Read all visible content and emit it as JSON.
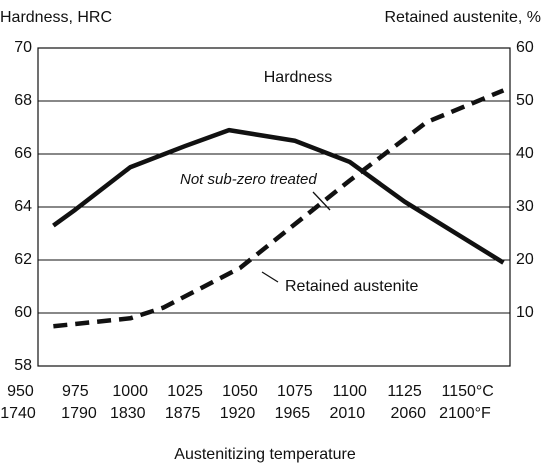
{
  "chart_data": {
    "type": "line",
    "y_label": "Hardness, HRC",
    "y2_label": "Retained austenite, %",
    "x_label": "Austenitizing temperature",
    "xlim": [
      958,
      1173
    ],
    "xticks": [
      950,
      975,
      1000,
      1025,
      1050,
      1075,
      1100,
      1125,
      {
        "value": 1150,
        "label": "1150°C"
      }
    ],
    "x2ticks": [
      1740,
      1790,
      1830,
      1875,
      1920,
      1965,
      2010,
      2060,
      {
        "value": 2100,
        "label": "2100°F"
      }
    ],
    "ylim": [
      58,
      70
    ],
    "yticks": [
      58,
      60,
      62,
      64,
      66,
      68,
      70
    ],
    "y2lim": [
      0,
      60
    ],
    "y2ticks": [
      10,
      20,
      30,
      40,
      50,
      60
    ],
    "grid": true,
    "series": [
      {
        "name": "Hardness",
        "color": "#111111",
        "dash": false,
        "x": [
          965,
          975,
          1000,
          1025,
          1045,
          1075,
          1100,
          1125,
          1170
        ],
        "values": [
          63.3,
          63.9,
          65.5,
          66.3,
          66.9,
          66.5,
          65.7,
          64.2,
          61.9
        ]
      },
      {
        "name": "Retained austenite",
        "color": "#111111",
        "dash": true,
        "axis": "y2",
        "x": [
          965,
          1000,
          1015,
          1050,
          1100,
          1135,
          1170
        ],
        "values": [
          7.5,
          9,
          11,
          18.5,
          35,
          46,
          52
        ]
      }
    ],
    "annotations": [
      "Not sub-zero treated"
    ]
  }
}
